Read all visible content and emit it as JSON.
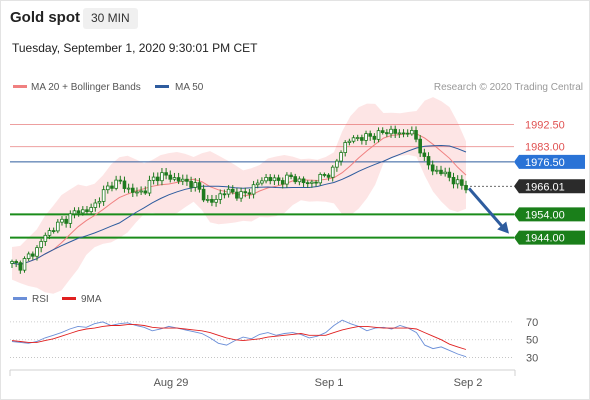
{
  "header": {
    "title": "Gold spot",
    "timeframe": "30 MIN",
    "datetime": "Tuesday, September 1, 2020 9:30:01 PM CET"
  },
  "legend": {
    "items": [
      {
        "label": "MA 20 + Bollinger Bands",
        "color": "#f08080"
      },
      {
        "label": "MA 50",
        "color": "#2e5c9e"
      }
    ],
    "credit": "Research © 2020 Trading Central"
  },
  "colors": {
    "resistance": "#e05252",
    "support": "#1a8c1a",
    "ma50": "#2e5c9e",
    "band": "#fde0e0",
    "ma20": "#f08080",
    "candle": "#1e7a1e",
    "current": "#333333",
    "forecast_arrow": "#2e5c9e",
    "rsi": "#6b8fd8",
    "rsi_ma": "#e02020"
  },
  "chart_data": [
    {
      "type": "candlestick",
      "title": "Gold spot",
      "x_ticks": [
        "Aug 29",
        "Sep 1",
        "Sep 2"
      ],
      "ylim": [
        1925,
        2003
      ],
      "levels": [
        {
          "value": 1992.5,
          "label": "1992.50",
          "kind": "resistance"
        },
        {
          "value": 1983.0,
          "label": "1983.00",
          "kind": "resistance"
        },
        {
          "value": 1976.5,
          "label": "1976.50",
          "kind": "pivot"
        },
        {
          "value": 1966.01,
          "label": "1966.01",
          "kind": "current"
        },
        {
          "value": 1954.0,
          "label": "1954.00",
          "kind": "support"
        },
        {
          "value": 1944.0,
          "label": "1944.00",
          "kind": "support"
        }
      ],
      "series": [
        {
          "name": "MA 20 + Bollinger Bands"
        },
        {
          "name": "MA 50"
        }
      ],
      "close_path": [
        1933,
        1932,
        1936,
        1939,
        1945,
        1948,
        1951,
        1953,
        1956,
        1955,
        1958,
        1963,
        1967,
        1968,
        1965,
        1963,
        1964,
        1969,
        1971,
        1970,
        1969,
        1968,
        1967,
        1963,
        1958,
        1962,
        1964,
        1963,
        1962,
        1965,
        1968,
        1970,
        1968,
        1969,
        1970,
        1968,
        1967,
        1969,
        1971,
        1973,
        1983,
        1986,
        1987,
        1987,
        1988,
        1989,
        1990,
        1988,
        1990,
        1986,
        1977,
        1973,
        1972,
        1970,
        1967,
        1966
      ],
      "forecast": {
        "from": 1966,
        "to": 1944
      }
    },
    {
      "type": "line",
      "title": "RSI",
      "ylim": [
        25,
        80
      ],
      "y_ticks": [
        70,
        50,
        30
      ],
      "series": [
        {
          "name": "RSI",
          "values": [
            48,
            47,
            46,
            48,
            52,
            55,
            58,
            62,
            65,
            64,
            68,
            70,
            66,
            68,
            69,
            66,
            64,
            60,
            62,
            65,
            63,
            61,
            59,
            57,
            52,
            46,
            44,
            49,
            53,
            51,
            56,
            58,
            55,
            57,
            58,
            56,
            52,
            54,
            58,
            66,
            72,
            68,
            65,
            60,
            63,
            64,
            62,
            66,
            63,
            58,
            44,
            40,
            42,
            38,
            34,
            31
          ]
        },
        {
          "name": "9MA",
          "values": [
            49,
            48,
            47,
            47,
            49,
            51,
            54,
            57,
            60,
            62,
            63,
            65,
            66,
            66,
            67,
            67,
            66,
            64,
            63,
            63,
            63,
            62,
            61,
            60,
            58,
            55,
            52,
            50,
            49,
            50,
            51,
            53,
            54,
            55,
            56,
            57,
            55,
            55,
            55,
            58,
            61,
            63,
            65,
            65,
            64,
            63,
            63,
            63,
            63,
            62,
            58,
            54,
            50,
            45,
            42,
            39
          ]
        }
      ]
    }
  ]
}
